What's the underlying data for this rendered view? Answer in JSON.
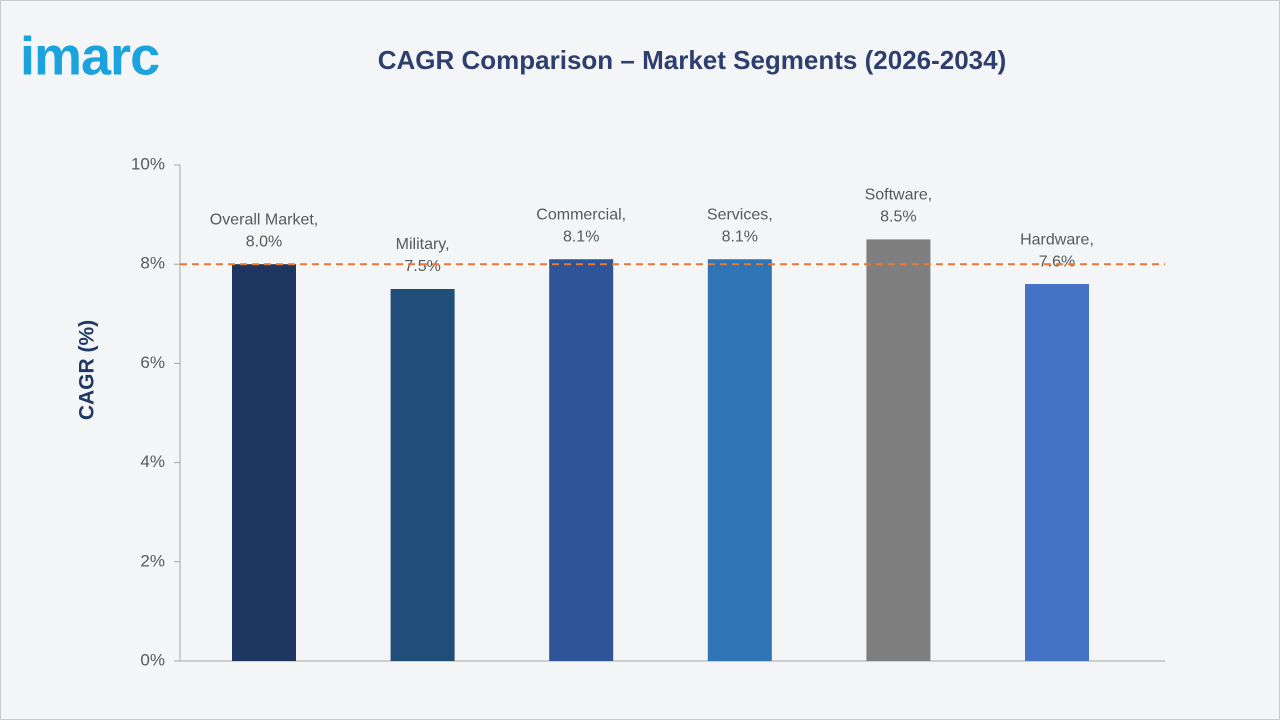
{
  "logo": "imarc",
  "chart_data": {
    "type": "bar",
    "title": "CAGR Comparison – Market Segments (2026-2034)",
    "y_label": "CAGR (%)",
    "categories": [
      "Overall Market,",
      "Military,",
      "Commercial,",
      "Services,",
      "Software,",
      "Hardware,"
    ],
    "values": [
      8.0,
      7.5,
      8.1,
      8.1,
      8.5,
      7.6
    ],
    "value_labels": [
      "8.0%",
      "7.5%",
      "8.1%",
      "8.1%",
      "8.5%",
      "7.6%"
    ],
    "colors": [
      "#1f3660",
      "#1f4e79",
      "#2e5597",
      "#2e75b6",
      "#7f7f7f",
      "#4472c4"
    ],
    "ylim": [
      0,
      10
    ],
    "yticks": [
      {
        "value": 0,
        "label": "0%"
      },
      {
        "value": 2,
        "label": "2%"
      },
      {
        "value": 4,
        "label": "4%"
      },
      {
        "value": 6,
        "label": "6%"
      },
      {
        "value": 8,
        "label": "8%"
      },
      {
        "value": 10,
        "label": "10%"
      }
    ],
    "reference_line": {
      "value": 8,
      "color": "#e07b39"
    }
  }
}
